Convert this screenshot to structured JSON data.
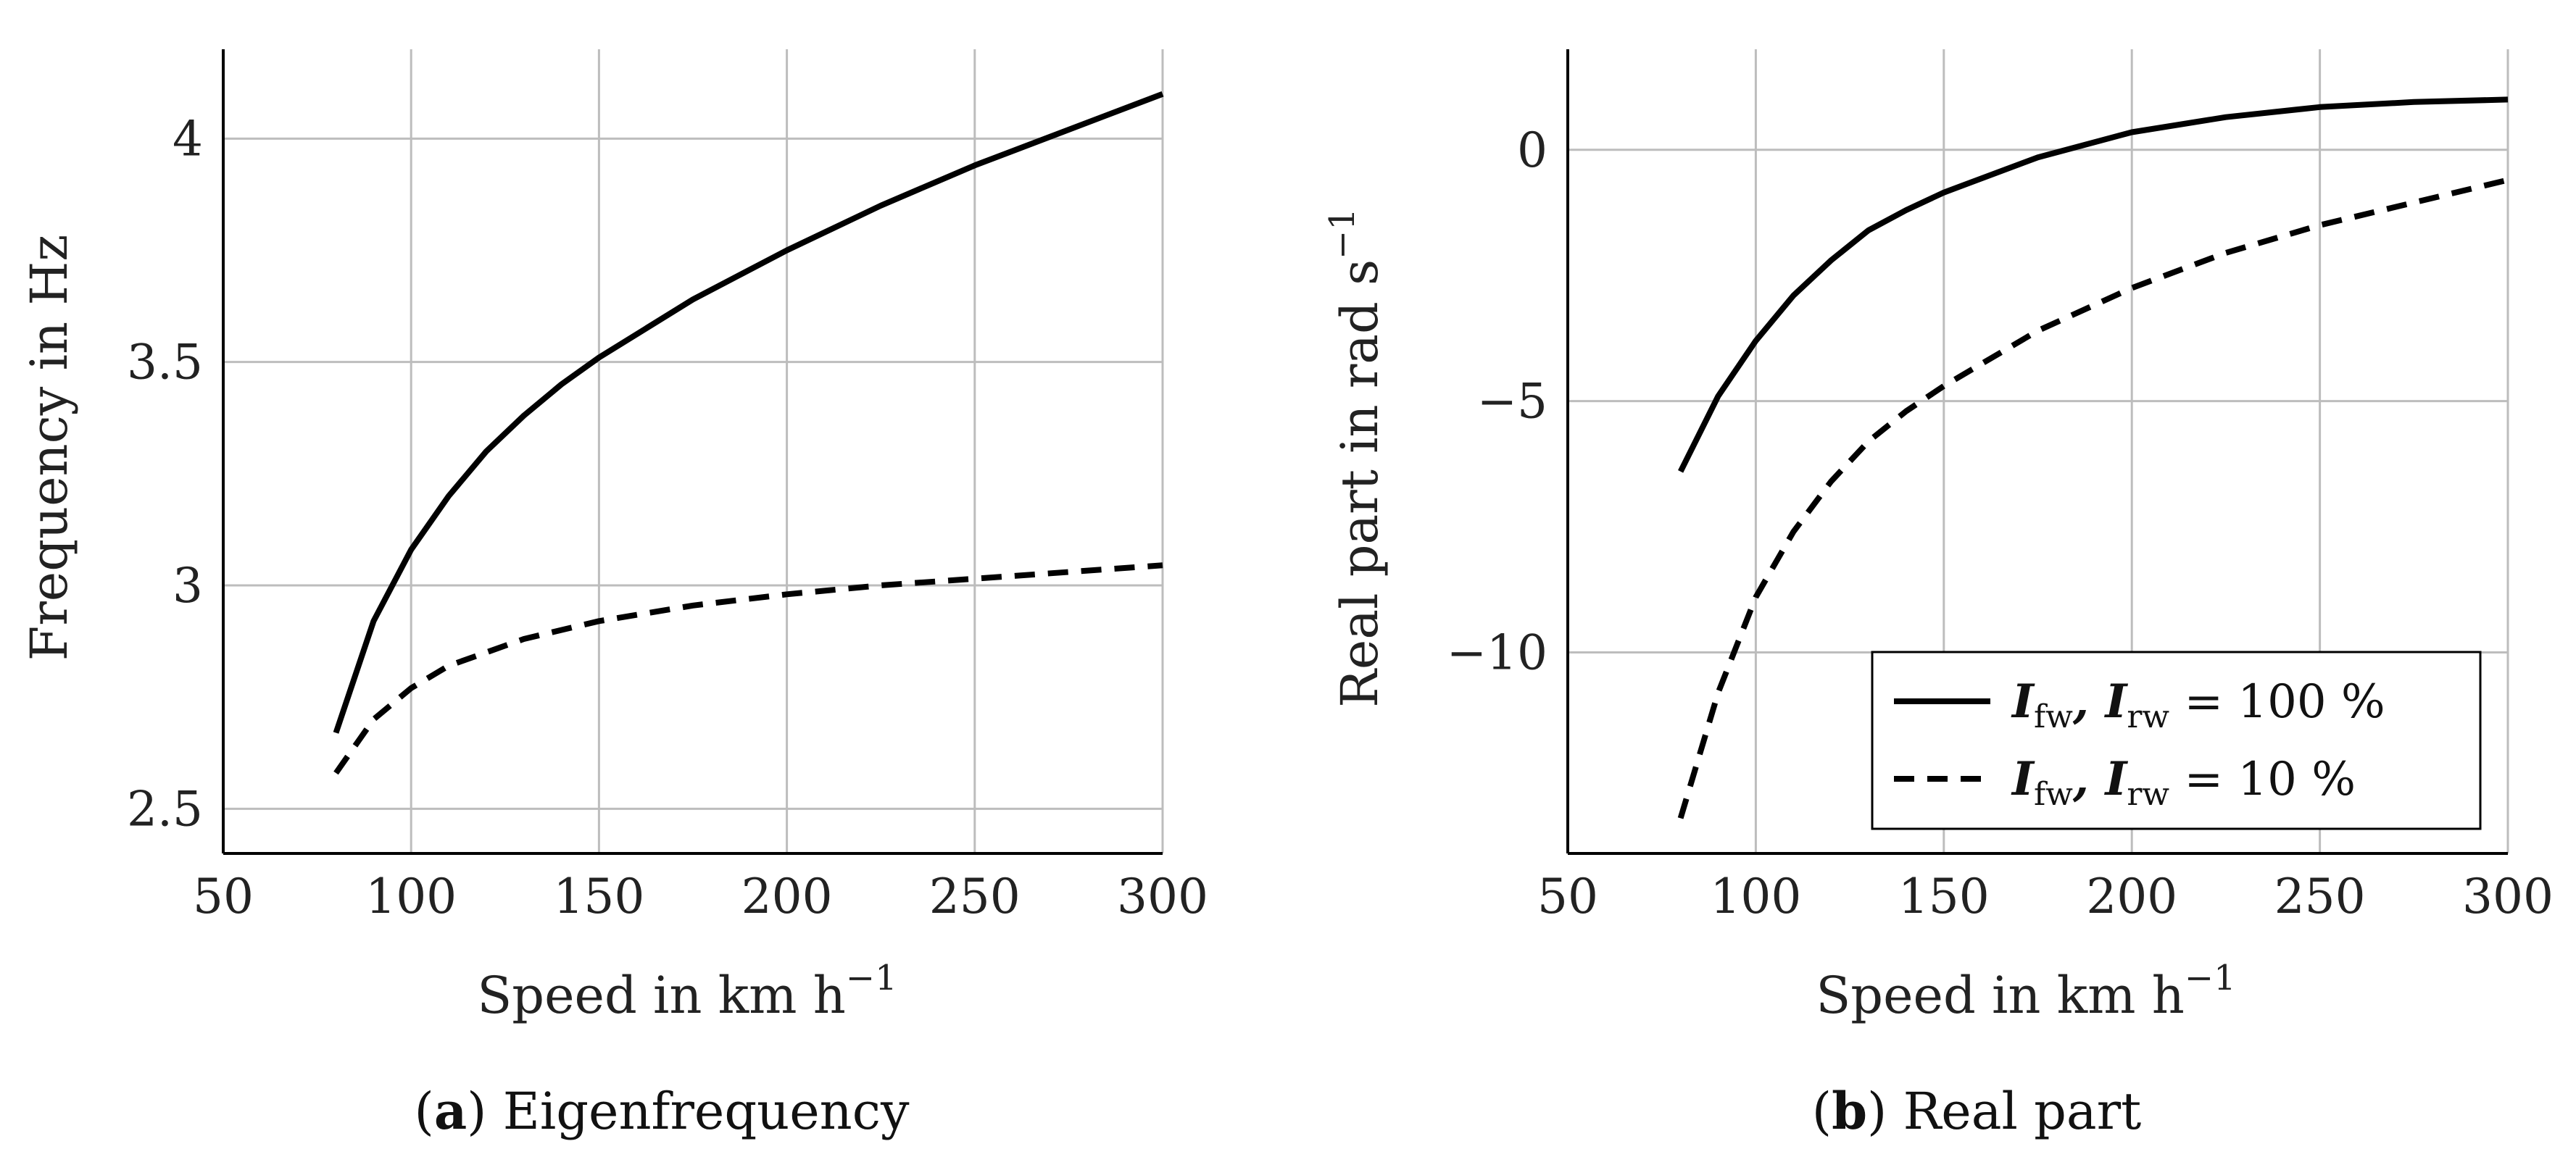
{
  "chart_data": [
    {
      "type": "line",
      "caption_letter": "a",
      "caption_text": "Eigenfrequency",
      "xlabel": "Speed in km h",
      "xlabel_sup": "−1",
      "ylabel": "Frequency in Hz",
      "xlim": [
        50,
        300
      ],
      "ylim": [
        2.4,
        4.2
      ],
      "xticks": [
        50,
        100,
        150,
        200,
        250,
        300
      ],
      "xtick_labels": [
        "50",
        "100",
        "150",
        "200",
        "250",
        "300"
      ],
      "yticks": [
        2.5,
        3,
        3.5,
        4
      ],
      "ytick_labels": [
        "2.5",
        "3",
        "3.5",
        "4"
      ],
      "grid": true,
      "series": [
        {
          "name": "I_fw, I_rw = 100 %",
          "style": "solid",
          "x": [
            80,
            90,
            100,
            110,
            120,
            130,
            140,
            150,
            175,
            200,
            225,
            250,
            275,
            300
          ],
          "y": [
            2.67,
            2.92,
            3.08,
            3.2,
            3.3,
            3.38,
            3.45,
            3.51,
            3.64,
            3.75,
            3.85,
            3.94,
            4.02,
            4.1
          ]
        },
        {
          "name": "I_fw, I_rw = 10 %",
          "style": "dashed",
          "x": [
            80,
            90,
            100,
            110,
            120,
            130,
            150,
            175,
            200,
            225,
            250,
            275,
            300
          ],
          "y": [
            2.58,
            2.7,
            2.77,
            2.82,
            2.85,
            2.88,
            2.92,
            2.955,
            2.98,
            3.0,
            3.015,
            3.03,
            3.045
          ]
        }
      ]
    },
    {
      "type": "line",
      "caption_letter": "b",
      "caption_text": "Real part",
      "xlabel": "Speed in km h",
      "xlabel_sup": "−1",
      "ylabel": "Real part in rad s",
      "ylabel_sup": "−1",
      "xlim": [
        50,
        300
      ],
      "ylim": [
        -14,
        2
      ],
      "xticks": [
        50,
        100,
        150,
        200,
        250,
        300
      ],
      "xtick_labels": [
        "50",
        "100",
        "150",
        "200",
        "250",
        "300"
      ],
      "yticks": [
        -10,
        -5,
        0
      ],
      "ytick_labels": [
        "−10",
        "−5",
        "0"
      ],
      "grid": true,
      "legend": {
        "position": "bottom-right",
        "entries": [
          {
            "style": "solid",
            "label_main": "I",
            "sub1": "fw",
            "label_mid": ", I",
            "sub2": "rw",
            "label_tail": " = 100 %"
          },
          {
            "style": "dashed",
            "label_main": "I",
            "sub1": "fw",
            "label_mid": ", I",
            "sub2": "rw",
            "label_tail": " = 10 %"
          }
        ]
      },
      "series": [
        {
          "name": "I_fw, I_rw = 100 %",
          "style": "solid",
          "x": [
            80,
            90,
            100,
            110,
            120,
            130,
            140,
            150,
            175,
            200,
            225,
            250,
            275,
            300
          ],
          "y": [
            -6.4,
            -4.9,
            -3.8,
            -2.9,
            -2.2,
            -1.6,
            -1.2,
            -0.85,
            -0.15,
            0.35,
            0.65,
            0.85,
            0.95,
            1.0
          ]
        },
        {
          "name": "I_fw, I_rw = 10 %",
          "style": "dashed",
          "x": [
            80,
            90,
            100,
            110,
            120,
            130,
            140,
            150,
            175,
            200,
            225,
            250,
            275,
            300
          ],
          "y": [
            -13.3,
            -10.8,
            -8.9,
            -7.6,
            -6.6,
            -5.8,
            -5.2,
            -4.7,
            -3.6,
            -2.75,
            -2.05,
            -1.5,
            -1.05,
            -0.6
          ]
        }
      ]
    }
  ]
}
